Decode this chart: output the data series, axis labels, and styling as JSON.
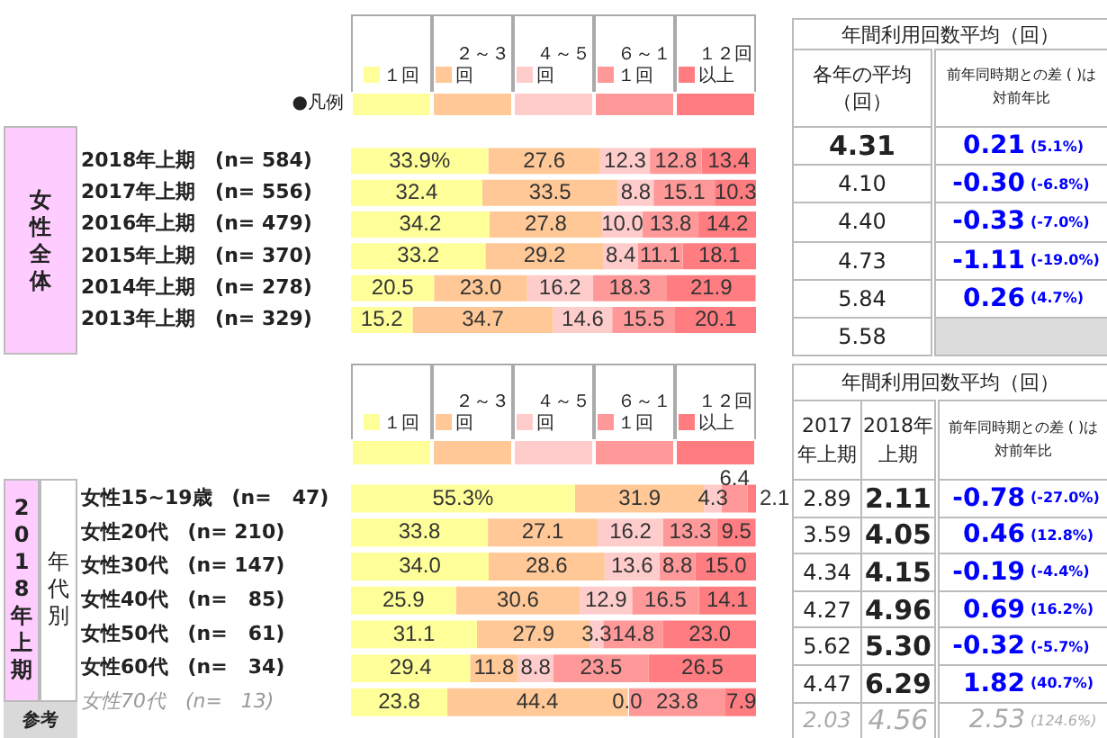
{
  "chart_data": [
    {
      "type": "bar",
      "orientation": "horizontal",
      "stacked": true,
      "ylabel": "女性全体",
      "legend": "top",
      "legend_title": "●凡例",
      "tick_labels": "y",
      "xlim": [
        0,
        100
      ],
      "categories": [
        "2018年上期　(n= 584)",
        "2017年上期　(n= 556)",
        "2016年上期　(n= 479)",
        "2015年上期　(n= 370)",
        "2014年上期　(n= 278)",
        "2013年上期　(n= 329)"
      ],
      "series": [
        {
          "name": "１回",
          "color": "#ffff99",
          "values": [
            33.9,
            32.4,
            34.2,
            33.2,
            20.5,
            15.2
          ],
          "value_labels": [
            "33.9%",
            "32.4",
            "34.2",
            "33.2",
            "20.5",
            "15.2"
          ]
        },
        {
          "name": "２～３回",
          "color": "#ffc896",
          "values": [
            27.6,
            33.5,
            27.8,
            29.2,
            23.0,
            34.7
          ],
          "value_labels": [
            "27.6",
            "33.5",
            "27.8",
            "29.2",
            "23.0",
            "34.7"
          ]
        },
        {
          "name": "４～５回",
          "color": "#ffcccc",
          "values": [
            12.3,
            8.8,
            10.0,
            8.4,
            16.2,
            14.6
          ],
          "value_labels": [
            "12.3",
            "8.8",
            "10.0",
            "8.4",
            "16.2",
            "14.6"
          ]
        },
        {
          "name": "６～１１回",
          "color": "#ff9999",
          "values": [
            12.8,
            15.1,
            13.8,
            11.1,
            18.3,
            15.5
          ],
          "value_labels": [
            "12.8",
            "15.1",
            "13.8",
            "11.1",
            "18.3",
            "15.5"
          ]
        },
        {
          "name": "１２回以上",
          "color": "#ff7c80",
          "values": [
            13.4,
            10.3,
            14.2,
            18.1,
            21.9,
            20.1
          ],
          "value_labels": [
            "13.4",
            "10.3",
            "14.2",
            "18.1",
            "21.9",
            "20.1"
          ]
        }
      ]
    },
    {
      "type": "other",
      "title": "年間利用回数平均（回）",
      "categories": [
        "各年の平均（回）",
        "前年同時期との差 ( )は対前年比"
      ],
      "cell_labels": [
        [
          "4.31",
          "0.21",
          "(5.1%)"
        ],
        [
          "4.10",
          "-0.30",
          "(-6.8%)"
        ],
        [
          "4.40",
          "-0.33",
          "(-7.0%)"
        ],
        [
          "4.73",
          "-1.11",
          "(-19.0%)"
        ],
        [
          "5.84",
          "0.26",
          "(4.7%)"
        ],
        [
          "5.58",
          null,
          null
        ]
      ]
    },
    {
      "type": "bar",
      "orientation": "horizontal",
      "stacked": true,
      "ylabel": "2018年上期",
      "legend": "top",
      "tick_labels": "y",
      "xlim": [
        0,
        100
      ],
      "annotations": [
        "年代別",
        "参考"
      ],
      "categories": [
        "女性15~19歳　(n=   47)",
        "女性20代　(n= 210)",
        "女性30代　(n= 147)",
        "女性40代　(n=   85)",
        "女性50代　(n=   61)",
        "女性60代　(n=   34)",
        "女性70代　(n=   13)"
      ],
      "series": [
        {
          "name": "１回",
          "color": "#ffff99",
          "values": [
            55.3,
            33.8,
            34.0,
            25.9,
            31.1,
            29.4,
            23.8
          ],
          "value_labels": [
            "55.3%",
            "33.8",
            "34.0",
            "25.9",
            "31.1",
            "29.4",
            "23.8"
          ]
        },
        {
          "name": "２～３回",
          "color": "#ffc896",
          "values": [
            31.9,
            27.1,
            28.6,
            30.6,
            27.9,
            11.8,
            44.4
          ],
          "value_labels": [
            "31.9",
            "27.1",
            "28.6",
            "30.6",
            "27.9",
            "11.8",
            "44.4"
          ]
        },
        {
          "name": "４～５回",
          "color": "#ffcccc",
          "values": [
            4.3,
            16.2,
            13.6,
            12.9,
            3.3,
            8.8,
            0.0
          ],
          "value_labels": [
            "4.3",
            "16.2",
            "13.6",
            "12.9",
            "3.3",
            "8.8",
            "0.0"
          ]
        },
        {
          "name": "６～１１回",
          "color": "#ff9999",
          "values": [
            6.4,
            13.3,
            8.8,
            16.5,
            14.8,
            23.5,
            23.8
          ],
          "value_labels": [
            "6.4",
            "13.3",
            "8.8",
            "16.5",
            "14.8",
            "23.5",
            "23.8"
          ]
        },
        {
          "name": "１２回以上",
          "color": "#ff7c80",
          "values": [
            2.1,
            9.5,
            15.0,
            14.1,
            23.0,
            26.5,
            7.9
          ],
          "value_labels": [
            "2.1",
            "9.5",
            "15.0",
            "14.1",
            "23.0",
            "26.5",
            "7.9"
          ]
        }
      ]
    },
    {
      "type": "other",
      "title": "年間利用回数平均（回）",
      "categories": [
        "2017年上期",
        "2018年上期",
        "前年同時期との差 ( )は対前年比"
      ],
      "cell_labels": [
        [
          "2.89",
          "2.11",
          "-0.78",
          "(-27.0%)"
        ],
        [
          "3.59",
          "4.05",
          "0.46",
          "(12.8%)"
        ],
        [
          "4.34",
          "4.15",
          "-0.19",
          "(-4.4%)"
        ],
        [
          "4.27",
          "4.96",
          "0.69",
          "(16.2%)"
        ],
        [
          "5.62",
          "5.30",
          "-0.32",
          "(-5.7%)"
        ],
        [
          "4.47",
          "6.29",
          "1.82",
          "(40.7%)"
        ],
        [
          "2.03",
          "4.56",
          "2.53",
          "(124.6%)"
        ]
      ]
    }
  ]
}
